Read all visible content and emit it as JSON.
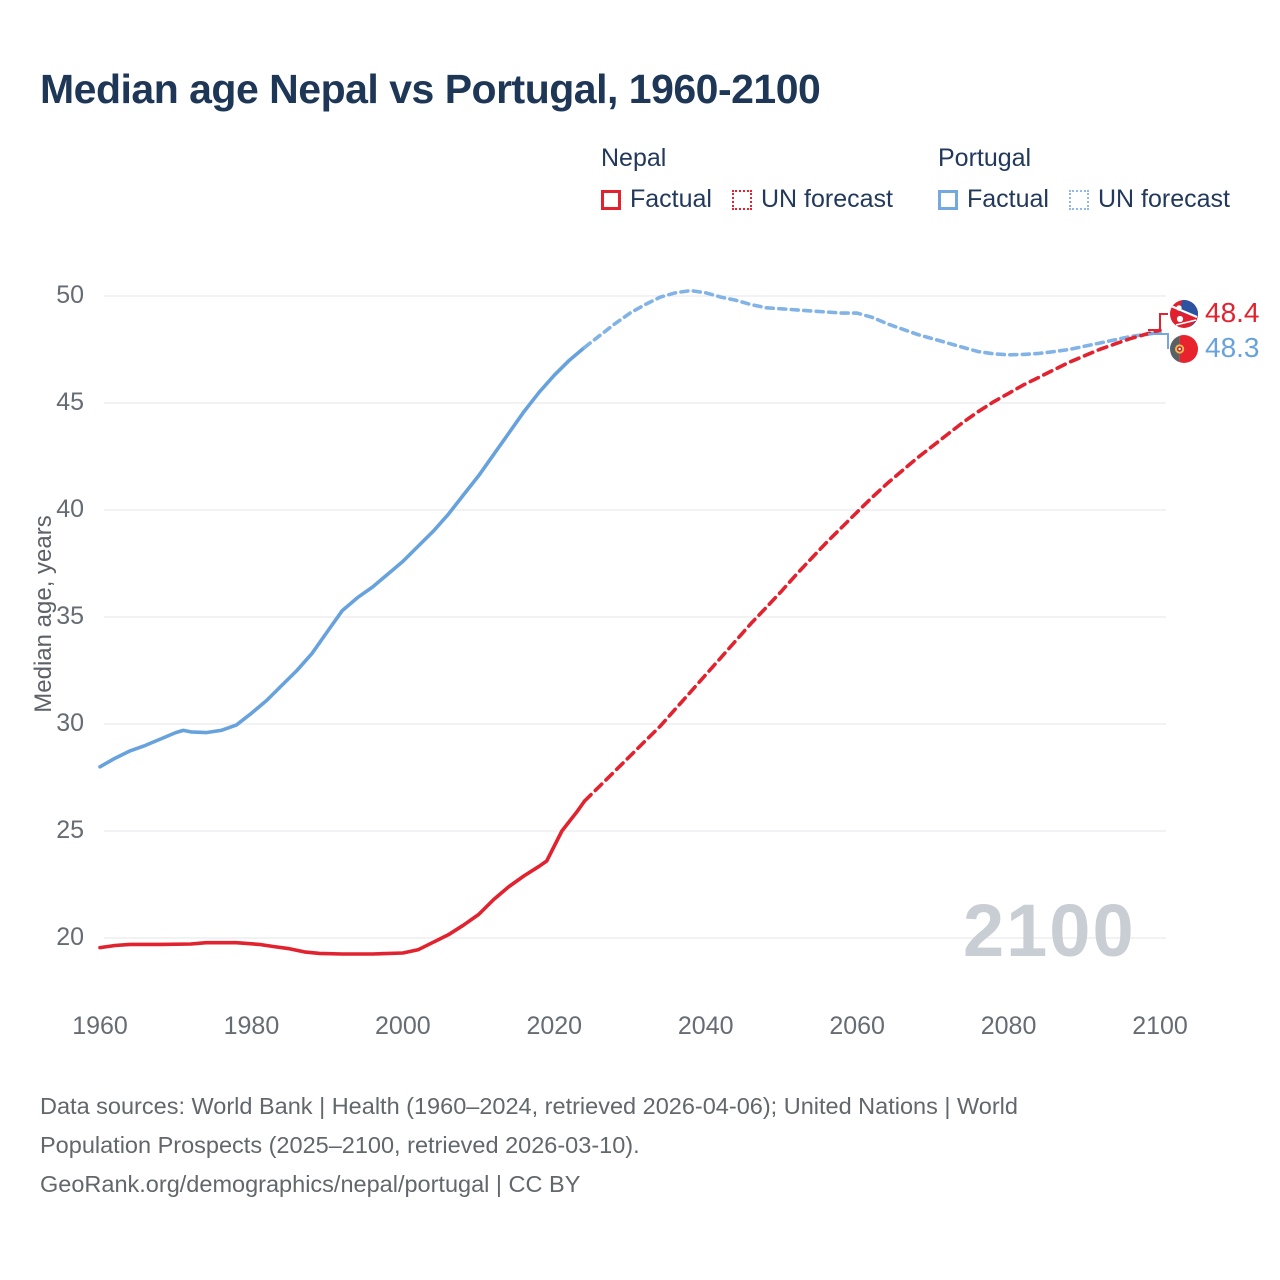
{
  "title": "Median age Nepal vs Portugal, 1960-2100",
  "legend": {
    "nepal": {
      "header": "Nepal",
      "factual": "Factual",
      "forecast": "UN forecast"
    },
    "portugal": {
      "header": "Portugal",
      "factual": "Factual",
      "forecast": "UN forecast"
    }
  },
  "y_axis": {
    "label": "Median age, years",
    "ticks": [
      50,
      45,
      40,
      35,
      30,
      25,
      20
    ]
  },
  "x_axis": {
    "ticks": [
      1960,
      1980,
      2000,
      2020,
      2040,
      2060,
      2080,
      2100
    ]
  },
  "end_labels": {
    "nepal": "48.4",
    "portugal": "48.3"
  },
  "watermark": "2100",
  "footer": {
    "line1": "Data sources: World Bank | Health (1960–2024, retrieved 2026-04-06); United Nations | World",
    "line2": "Population Prospects (2025–2100, retrieved 2026-03-10).",
    "line3": "GeoRank.org/demographics/nepal/portugal | CC BY"
  },
  "colors": {
    "nepal_line": "#e0232f",
    "portugal_line": "#68a2dc",
    "portugal_forecast_line": "#82b3e6",
    "title_text": "#1e3757",
    "tick_text": "#666c73",
    "grid": "#e9ebed",
    "watermark": "#c9ced5"
  },
  "chart_data": {
    "type": "line",
    "title": "Median age Nepal vs Portugal, 1960-2100",
    "xlabel": "",
    "ylabel": "Median age, years",
    "x_range": [
      1960,
      2100
    ],
    "y_range": [
      20,
      50
    ],
    "grid": "horizontal",
    "legend_position": "top-right",
    "end_values": {
      "nepal_2100": 48.4,
      "portugal_2100": 48.3
    },
    "series": [
      {
        "name": "Portugal factual",
        "style": "solid",
        "color": "#68a2dc",
        "points": [
          [
            1960,
            28.0
          ],
          [
            1962,
            28.4
          ],
          [
            1964,
            28.75
          ],
          [
            1966,
            29.0
          ],
          [
            1968,
            29.3
          ],
          [
            1970,
            29.6
          ],
          [
            1971,
            29.7
          ],
          [
            1972,
            29.63
          ],
          [
            1974,
            29.6
          ],
          [
            1976,
            29.7
          ],
          [
            1978,
            29.95
          ],
          [
            1980,
            30.5
          ],
          [
            1982,
            31.1
          ],
          [
            1984,
            31.8
          ],
          [
            1986,
            32.5
          ],
          [
            1988,
            33.3
          ],
          [
            1990,
            34.3
          ],
          [
            1992,
            35.3
          ],
          [
            1994,
            35.9
          ],
          [
            1996,
            36.4
          ],
          [
            1998,
            37.0
          ],
          [
            2000,
            37.6
          ],
          [
            2002,
            38.3
          ],
          [
            2004,
            39.0
          ],
          [
            2006,
            39.8
          ],
          [
            2008,
            40.7
          ],
          [
            2010,
            41.6
          ],
          [
            2012,
            42.6
          ],
          [
            2014,
            43.6
          ],
          [
            2016,
            44.6
          ],
          [
            2018,
            45.5
          ],
          [
            2020,
            46.3
          ],
          [
            2022,
            47.0
          ],
          [
            2024,
            47.6
          ]
        ]
      },
      {
        "name": "Portugal UN forecast",
        "style": "dashed",
        "color": "#82b3e6",
        "dash": "7 5.5",
        "points": [
          [
            2024,
            47.6
          ],
          [
            2026,
            48.15
          ],
          [
            2028,
            48.7
          ],
          [
            2030,
            49.2
          ],
          [
            2032,
            49.6
          ],
          [
            2034,
            49.95
          ],
          [
            2036,
            50.15
          ],
          [
            2038,
            50.25
          ],
          [
            2040,
            50.15
          ],
          [
            2042,
            49.95
          ],
          [
            2044,
            49.8
          ],
          [
            2046,
            49.6
          ],
          [
            2048,
            49.45
          ],
          [
            2050,
            49.4
          ],
          [
            2052,
            49.35
          ],
          [
            2054,
            49.3
          ],
          [
            2056,
            49.25
          ],
          [
            2058,
            49.2
          ],
          [
            2060,
            49.2
          ],
          [
            2062,
            49.0
          ],
          [
            2064,
            48.7
          ],
          [
            2066,
            48.45
          ],
          [
            2068,
            48.2
          ],
          [
            2070,
            48.0
          ],
          [
            2072,
            47.8
          ],
          [
            2074,
            47.6
          ],
          [
            2076,
            47.4
          ],
          [
            2078,
            47.3
          ],
          [
            2080,
            47.25
          ],
          [
            2082,
            47.27
          ],
          [
            2084,
            47.32
          ],
          [
            2086,
            47.4
          ],
          [
            2088,
            47.5
          ],
          [
            2090,
            47.65
          ],
          [
            2092,
            47.8
          ],
          [
            2094,
            47.95
          ],
          [
            2096,
            48.1
          ],
          [
            2098,
            48.2
          ],
          [
            2100,
            48.3
          ]
        ]
      },
      {
        "name": "Nepal factual",
        "style": "solid",
        "color": "#e0232f",
        "points": [
          [
            1960,
            19.55
          ],
          [
            1962,
            19.65
          ],
          [
            1964,
            19.7
          ],
          [
            1968,
            19.7
          ],
          [
            1972,
            19.72
          ],
          [
            1974,
            19.78
          ],
          [
            1978,
            19.78
          ],
          [
            1981,
            19.7
          ],
          [
            1983,
            19.6
          ],
          [
            1985,
            19.5
          ],
          [
            1987,
            19.35
          ],
          [
            1989,
            19.28
          ],
          [
            1992,
            19.25
          ],
          [
            1996,
            19.25
          ],
          [
            2000,
            19.3
          ],
          [
            2002,
            19.45
          ],
          [
            2004,
            19.8
          ],
          [
            2006,
            20.15
          ],
          [
            2008,
            20.6
          ],
          [
            2010,
            21.1
          ],
          [
            2012,
            21.8
          ],
          [
            2014,
            22.4
          ],
          [
            2016,
            22.9
          ],
          [
            2018,
            23.35
          ],
          [
            2019,
            23.6
          ],
          [
            2020,
            24.3
          ],
          [
            2021,
            25.0
          ],
          [
            2022,
            25.45
          ],
          [
            2023,
            25.9
          ],
          [
            2024,
            26.4
          ]
        ]
      },
      {
        "name": "Nepal UN forecast",
        "style": "dashed",
        "color": "#e0232f",
        "dash": "9 6",
        "points": [
          [
            2024,
            26.4
          ],
          [
            2026,
            27.1
          ],
          [
            2028,
            27.8
          ],
          [
            2030,
            28.5
          ],
          [
            2032,
            29.2
          ],
          [
            2034,
            29.9
          ],
          [
            2036,
            30.7
          ],
          [
            2038,
            31.5
          ],
          [
            2040,
            32.3
          ],
          [
            2042,
            33.1
          ],
          [
            2044,
            33.9
          ],
          [
            2046,
            34.7
          ],
          [
            2048,
            35.45
          ],
          [
            2050,
            36.2
          ],
          [
            2052,
            37.0
          ],
          [
            2054,
            37.75
          ],
          [
            2056,
            38.5
          ],
          [
            2058,
            39.2
          ],
          [
            2060,
            39.9
          ],
          [
            2062,
            40.6
          ],
          [
            2064,
            41.25
          ],
          [
            2066,
            41.85
          ],
          [
            2068,
            42.45
          ],
          [
            2070,
            43.0
          ],
          [
            2072,
            43.55
          ],
          [
            2074,
            44.1
          ],
          [
            2076,
            44.6
          ],
          [
            2078,
            45.05
          ],
          [
            2080,
            45.45
          ],
          [
            2082,
            45.85
          ],
          [
            2084,
            46.2
          ],
          [
            2086,
            46.55
          ],
          [
            2088,
            46.9
          ],
          [
            2090,
            47.2
          ],
          [
            2092,
            47.5
          ],
          [
            2094,
            47.75
          ],
          [
            2096,
            48.0
          ],
          [
            2098,
            48.2
          ],
          [
            2100,
            48.4
          ]
        ]
      }
    ]
  }
}
